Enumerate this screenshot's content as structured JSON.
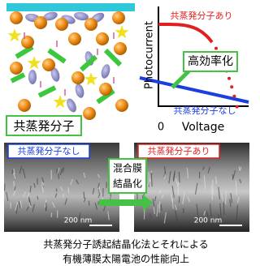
{
  "illustration": {
    "label": "共蒸発分子"
  },
  "graph": {
    "y_axis_label": "Photocurrent",
    "x_axis_label": "Voltage",
    "origin_label": "0",
    "curve_labels": [
      "共蒸発分子あり",
      "共蒸発分子なし"
    ],
    "annotation": "高効率化"
  },
  "images": [
    {
      "label": "共蒸発分子なし",
      "scale_bar": "200 nm"
    },
    {
      "label": "共蒸発分子あり",
      "scale_bar": "200 nm"
    }
  ],
  "transition": [
    "混合膜",
    "結晶化"
  ],
  "caption": [
    "共蒸発分子誘起結晶化法とそれによる",
    "有機薄膜太陽電池の性能向上"
  ]
}
